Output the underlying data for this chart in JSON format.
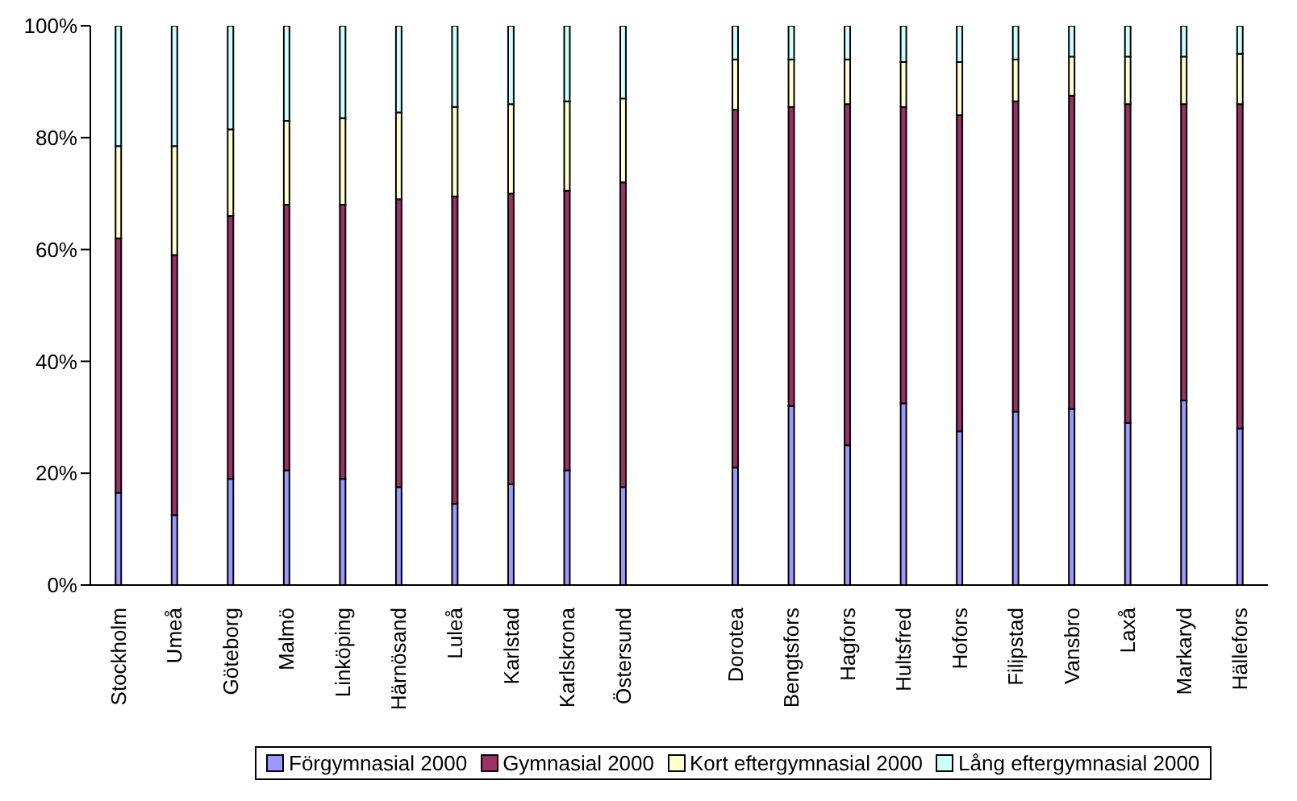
{
  "chart_data": {
    "type": "bar",
    "stacked": true,
    "legend": "bottom",
    "grid": false,
    "categories": [
      "Stockholm",
      "Umeå",
      "Göteborg",
      "Malmö",
      "Linköping",
      "Härnösand",
      "Luleå",
      "Karlstad",
      "Karlskrona",
      "Östersund",
      null,
      "Dorotea",
      "Bengtsfors",
      "Hagfors",
      "Hultsfred",
      "Hofors",
      "Filipstad",
      "Vansbro",
      "Laxå",
      "Markaryd",
      "Hällefors"
    ],
    "ylim": [
      0,
      100
    ],
    "yticks": [
      {
        "value": 0,
        "label": "0%"
      },
      {
        "value": 20,
        "label": "20%"
      },
      {
        "value": 40,
        "label": "40%"
      },
      {
        "value": 60,
        "label": "60%"
      },
      {
        "value": 80,
        "label": "80%"
      },
      {
        "value": 100,
        "label": "100%"
      }
    ],
    "series": [
      {
        "name": "Förgymnasial 2000",
        "color": "#9999ff",
        "values": [
          16.5,
          12.5,
          19,
          20.5,
          19,
          17.5,
          14.5,
          18,
          20.5,
          17.5,
          null,
          21,
          32,
          25,
          32.5,
          27.5,
          31,
          31.5,
          29,
          33,
          28
        ]
      },
      {
        "name": "Gymnasial 2000",
        "color": "#993366",
        "values": [
          45.5,
          46.5,
          47,
          47.5,
          49,
          51.5,
          55,
          52,
          50,
          54.5,
          null,
          64,
          53.5,
          61,
          53,
          56.5,
          55.5,
          56,
          57,
          53,
          58
        ]
      },
      {
        "name": "Kort eftergymnasial 2000",
        "color": "#ffffcc",
        "values": [
          16.5,
          19.5,
          15.5,
          15,
          15.5,
          15.5,
          16,
          16,
          16,
          15,
          null,
          9,
          8.5,
          8,
          8,
          9.5,
          7.5,
          7,
          8.5,
          8.5,
          9
        ]
      },
      {
        "name": "Lång eftergymnasial 2000",
        "color": "#ccffff",
        "values": [
          21.5,
          21.5,
          18.5,
          17,
          16.5,
          15.5,
          14.5,
          14,
          13.5,
          13,
          null,
          6,
          6,
          6,
          6.5,
          6.5,
          6,
          5.5,
          5.5,
          5.5,
          5
        ]
      }
    ]
  }
}
